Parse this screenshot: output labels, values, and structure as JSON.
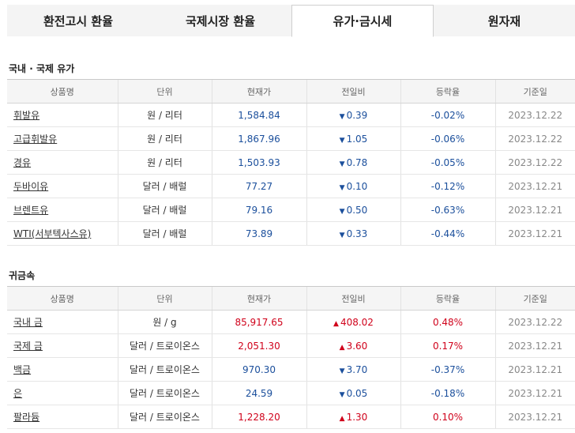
{
  "tabs": [
    {
      "label": "환전고시 환율"
    },
    {
      "label": "국제시장 환율"
    },
    {
      "label": "유가·금시세"
    },
    {
      "label": "원자재"
    }
  ],
  "headers": [
    "상품명",
    "단위",
    "현재가",
    "전일비",
    "등락율",
    "기준일"
  ],
  "oil": {
    "title": "국내 · 국제 유가",
    "rows": [
      {
        "name": "휘발유",
        "unit": "원 / 리터",
        "price": "1,584.84",
        "dir": "down",
        "change": "0.39",
        "rate": "-0.02%",
        "date": "2023.12.22"
      },
      {
        "name": "고급휘발유",
        "unit": "원 / 리터",
        "price": "1,867.96",
        "dir": "down",
        "change": "1.05",
        "rate": "-0.06%",
        "date": "2023.12.22"
      },
      {
        "name": "경유",
        "unit": "원 / 리터",
        "price": "1,503.93",
        "dir": "down",
        "change": "0.78",
        "rate": "-0.05%",
        "date": "2023.12.22"
      },
      {
        "name": "두바이유",
        "unit": "달러 / 배럴",
        "price": "77.27",
        "dir": "down",
        "change": "0.10",
        "rate": "-0.12%",
        "date": "2023.12.21"
      },
      {
        "name": "브렌트유",
        "unit": "달러 / 배럴",
        "price": "79.16",
        "dir": "down",
        "change": "0.50",
        "rate": "-0.63%",
        "date": "2023.12.21"
      },
      {
        "name": "WTI(서부텍사스유)",
        "unit": "달러 / 배럴",
        "price": "73.89",
        "dir": "down",
        "change": "0.33",
        "rate": "-0.44%",
        "date": "2023.12.21"
      }
    ]
  },
  "metal": {
    "title": "귀금속",
    "rows": [
      {
        "name": "국내 금",
        "unit": "원 / g",
        "price": "85,917.65",
        "dir": "up",
        "change": "408.02",
        "rate": "0.48%",
        "date": "2023.12.22"
      },
      {
        "name": "국제 금",
        "unit": "달러 / 트로이온스",
        "price": "2,051.30",
        "dir": "up",
        "change": "3.60",
        "rate": "0.17%",
        "date": "2023.12.21"
      },
      {
        "name": "백금",
        "unit": "달러 / 트로이온스",
        "price": "970.30",
        "dir": "down",
        "change": "3.70",
        "rate": "-0.37%",
        "date": "2023.12.21"
      },
      {
        "name": "은",
        "unit": "달러 / 트로이온스",
        "price": "24.59",
        "dir": "down",
        "change": "0.05",
        "rate": "-0.18%",
        "date": "2023.12.21"
      },
      {
        "name": "팔라듐",
        "unit": "달러 / 트로이온스",
        "price": "1,228.20",
        "dir": "up",
        "change": "1.30",
        "rate": "0.10%",
        "date": "2023.12.21"
      }
    ]
  },
  "icons": {
    "up": "triangle-up-icon",
    "down": "triangle-down-icon"
  },
  "colors": {
    "up": "#d0021b",
    "down": "#1b4f9c"
  }
}
